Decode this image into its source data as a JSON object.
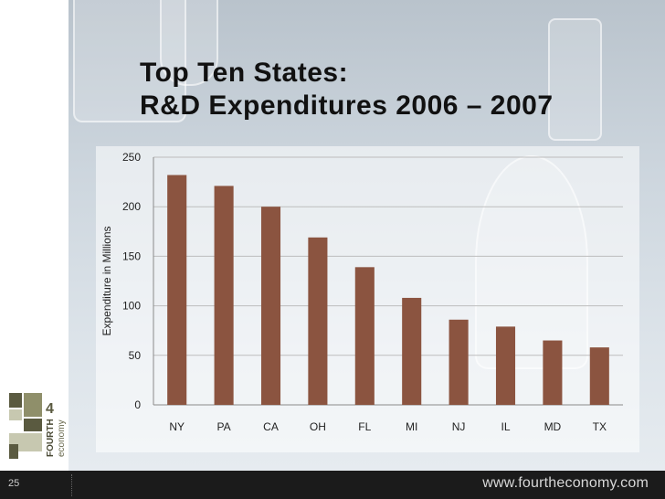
{
  "slide": {
    "title_line1": "Top Ten States:",
    "title_line2": "R&D Expenditures 2006 – 2007",
    "page_number": "25",
    "footer_url": "www.fourtheconomy.com"
  },
  "logo": {
    "numeral": "4",
    "word1": "FOURTH",
    "word2": "economy",
    "colors": {
      "dark": "#5a5a40",
      "mid": "#8f8f6a",
      "light": "#c7c8b0"
    }
  },
  "colors": {
    "bar": "#8b5440",
    "footer": "#1b1b1b"
  },
  "chart_data": {
    "type": "bar",
    "title": "",
    "xlabel": "",
    "ylabel": "Expenditure in Millions",
    "categories": [
      "NY",
      "PA",
      "CA",
      "OH",
      "FL",
      "MI",
      "NJ",
      "IL",
      "MD",
      "TX"
    ],
    "values": [
      232,
      221,
      200,
      169,
      139,
      108,
      86,
      79,
      65,
      58
    ],
    "ylim": [
      0,
      250
    ],
    "yticks": [
      0,
      50,
      100,
      150,
      200,
      250
    ],
    "grid": true,
    "legend": "none"
  }
}
